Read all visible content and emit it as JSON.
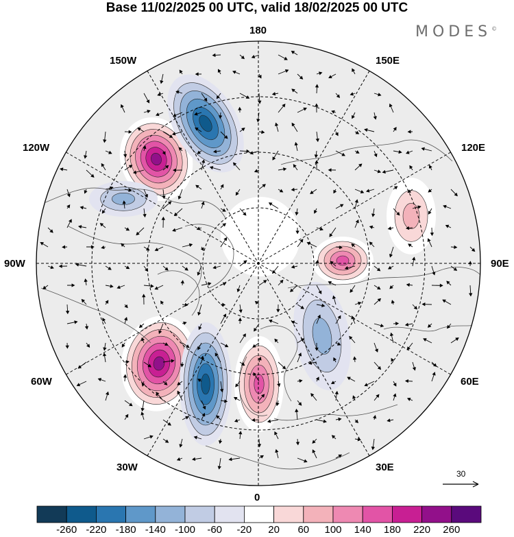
{
  "title": "Base 11/02/2025 00 UTC, valid 18/02/2025 00 UTC",
  "logo": {
    "text": "MODES",
    "mark": "©"
  },
  "longitude_labels": {
    "top": "180",
    "bottom": "0",
    "left": "90W",
    "right": "90E",
    "upper_left": "150W",
    "upper_right": "150E",
    "mid_upper_left": "120W",
    "mid_upper_right": "120E",
    "lower_left": "60W",
    "lower_right": "60E",
    "bottom_left": "30W",
    "bottom_right": "30E"
  },
  "reference_vector": {
    "value": "30"
  },
  "colorbar": {
    "ticks": [
      "-260",
      "-220",
      "-180",
      "-140",
      "-100",
      "-60",
      "-20",
      "20",
      "60",
      "100",
      "140",
      "180",
      "220",
      "260"
    ],
    "colors": [
      "#123a57",
      "#0f5a8c",
      "#2a76b0",
      "#5f98c9",
      "#93b3d8",
      "#c1cce4",
      "#e2e3f0",
      "#ffffff",
      "#f9d8d8",
      "#f3b2ba",
      "#ee89b2",
      "#e254a6",
      "#c81f93",
      "#92108a",
      "#5a0a7c"
    ]
  },
  "map": {
    "projection": "north-polar-stereographic",
    "field": "geopotential-anomaly",
    "anomaly_centres": [
      {
        "sign": "positive",
        "value": 240,
        "near": "120W"
      },
      {
        "sign": "negative",
        "value": -200,
        "near": "150W"
      },
      {
        "sign": "positive",
        "value": 240,
        "near": "60W"
      },
      {
        "sign": "negative",
        "value": -220,
        "near": "30W"
      },
      {
        "sign": "positive",
        "value": 160,
        "near": "0"
      },
      {
        "sign": "positive",
        "value": 160,
        "near": "90E"
      },
      {
        "sign": "positive",
        "value": 80,
        "near": "120E"
      },
      {
        "sign": "negative",
        "value": -100,
        "near": "60E"
      },
      {
        "sign": "negative",
        "value": -100,
        "near": "105W"
      }
    ],
    "colors": {
      "ocean_land": "#ececec",
      "grid": "#000000",
      "coast": "#555555"
    }
  }
}
